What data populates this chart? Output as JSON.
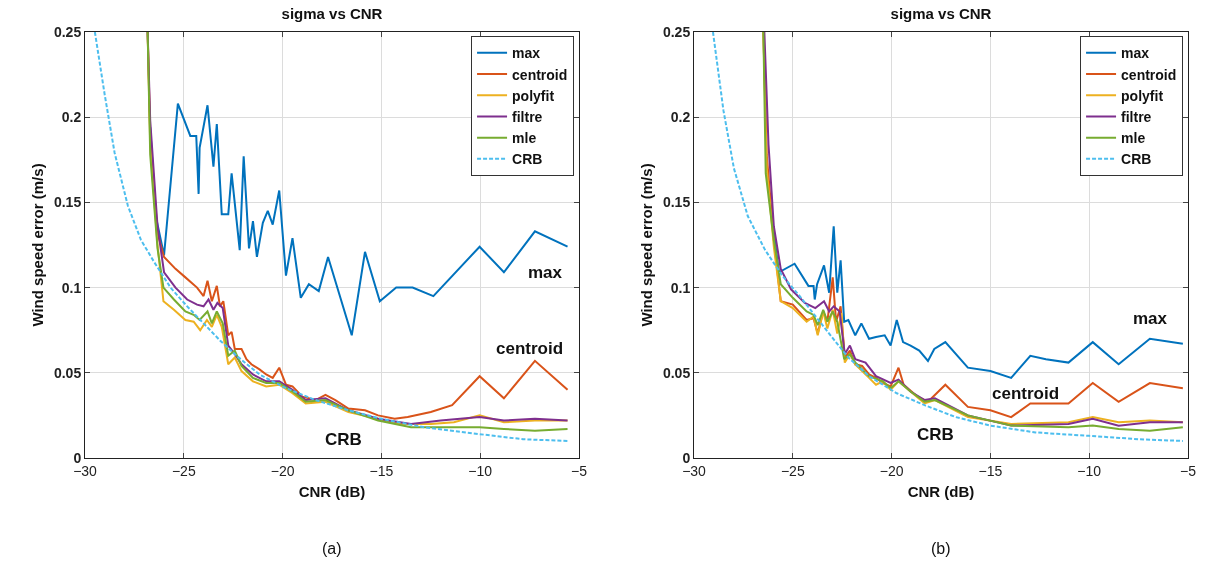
{
  "chart_data": [
    {
      "type": "line",
      "title": "sigma vs CNR",
      "xlabel": "CNR (dB)",
      "ylabel": "Wind speed error (m/s)",
      "xlim": [
        -30,
        -5
      ],
      "xticks": [
        -30,
        -25,
        -20,
        -15,
        -10,
        -5
      ],
      "ylim": [
        0,
        0.25
      ],
      "yticks": [
        0,
        0.05,
        0.1,
        0.15,
        0.2,
        0.25
      ],
      "grid": true,
      "legend": "top right",
      "annotations": [
        "max",
        "centroid",
        "CRB",
        "(a)"
      ],
      "series": [
        {
          "name": "max",
          "color": "#0072bd",
          "x": [
            -26.7,
            -26.42,
            -26.0,
            -25.3,
            -24.67,
            -24.37,
            -24.25,
            -24.2,
            -23.8,
            -23.5,
            -23.33,
            -23.08,
            -22.75,
            -22.58,
            -22.17,
            -21.97,
            -21.7,
            -21.5,
            -21.3,
            -21.0,
            -20.75,
            -20.5,
            -20.17,
            -19.83,
            -19.5,
            -19.08,
            -18.67,
            -18.17,
            -17.7,
            -16.5,
            -15.83,
            -15.08,
            -14.25,
            -13.42,
            -12.37,
            -10.03,
            -8.8,
            -7.23,
            -5.58
          ],
          "values": [
            0.194,
            0.142,
            0.119,
            0.208,
            0.189,
            0.189,
            0.155,
            0.182,
            0.207,
            0.171,
            0.196,
            0.143,
            0.143,
            0.167,
            0.122,
            0.177,
            0.123,
            0.139,
            0.118,
            0.138,
            0.145,
            0.137,
            0.157,
            0.107,
            0.129,
            0.094,
            0.102,
            0.098,
            0.118,
            0.072,
            0.121,
            0.092,
            0.1,
            0.1,
            0.095,
            0.124,
            0.109,
            0.133,
            0.124
          ]
        },
        {
          "name": "centroid",
          "color": "#d95319",
          "x": [
            -26.83,
            -26.7,
            -26.33,
            -26.0,
            -25.42,
            -24.92,
            -24.33,
            -24.0,
            -23.8,
            -23.58,
            -23.33,
            -23.17,
            -23.0,
            -22.75,
            -22.58,
            -22.42,
            -22.08,
            -21.83,
            -21.58,
            -21.17,
            -20.83,
            -20.5,
            -20.17,
            -19.83,
            -19.5,
            -19.0,
            -18.33,
            -17.83,
            -17.33,
            -16.67,
            -15.83,
            -15.17,
            -14.33,
            -13.67,
            -12.5,
            -11.42,
            -10.03,
            -8.8,
            -7.23,
            -5.58
          ],
          "values": [
            0.25,
            0.19,
            0.132,
            0.118,
            0.111,
            0.106,
            0.1,
            0.095,
            0.104,
            0.092,
            0.101,
            0.089,
            0.092,
            0.072,
            0.074,
            0.064,
            0.064,
            0.058,
            0.055,
            0.052,
            0.049,
            0.047,
            0.053,
            0.043,
            0.042,
            0.036,
            0.034,
            0.037,
            0.034,
            0.029,
            0.028,
            0.025,
            0.023,
            0.024,
            0.027,
            0.031,
            0.048,
            0.035,
            0.057,
            0.04
          ]
        },
        {
          "name": "polyfit",
          "color": "#edb120",
          "x": [
            -26.83,
            -26.7,
            -26.33,
            -26.03,
            -25.5,
            -24.92,
            -24.5,
            -24.17,
            -23.83,
            -23.58,
            -23.33,
            -23.08,
            -22.75,
            -22.42,
            -22.08,
            -21.5,
            -20.83,
            -20.17,
            -19.5,
            -18.83,
            -17.83,
            -16.67,
            -15.17,
            -14.0,
            -12.5,
            -11.33,
            -10.03,
            -8.8,
            -7.23,
            -5.58
          ],
          "values": [
            0.25,
            0.184,
            0.125,
            0.092,
            0.087,
            0.081,
            0.08,
            0.075,
            0.081,
            0.077,
            0.084,
            0.077,
            0.055,
            0.059,
            0.051,
            0.045,
            0.042,
            0.043,
            0.038,
            0.032,
            0.033,
            0.027,
            0.023,
            0.02,
            0.02,
            0.021,
            0.025,
            0.021,
            0.022,
            0.022
          ]
        },
        {
          "name": "filtre",
          "color": "#7e2f8e",
          "x": [
            -26.83,
            -26.7,
            -26.33,
            -26.0,
            -25.42,
            -24.83,
            -24.33,
            -24.0,
            -23.75,
            -23.5,
            -23.3,
            -23.03,
            -22.75,
            -22.42,
            -22.08,
            -21.5,
            -20.83,
            -20.17,
            -19.5,
            -18.83,
            -17.83,
            -16.67,
            -15.17,
            -13.5,
            -12.0,
            -10.03,
            -8.8,
            -7.23,
            -5.58
          ],
          "values": [
            0.25,
            0.198,
            0.136,
            0.109,
            0.1,
            0.093,
            0.09,
            0.089,
            0.093,
            0.087,
            0.091,
            0.088,
            0.066,
            0.061,
            0.055,
            0.049,
            0.045,
            0.045,
            0.04,
            0.034,
            0.035,
            0.028,
            0.023,
            0.02,
            0.022,
            0.024,
            0.022,
            0.023,
            0.022
          ]
        },
        {
          "name": "mle",
          "color": "#77ac30",
          "x": [
            -26.83,
            -26.7,
            -26.33,
            -26.03,
            -25.5,
            -24.92,
            -24.5,
            -24.2,
            -23.8,
            -23.58,
            -23.33,
            -23.03,
            -22.75,
            -22.42,
            -22.08,
            -21.5,
            -20.83,
            -20.17,
            -19.5,
            -18.83,
            -17.83,
            -16.67,
            -15.17,
            -13.5,
            -12.0,
            -10.03,
            -8.8,
            -7.23,
            -5.58
          ],
          "values": [
            0.25,
            0.178,
            0.123,
            0.1,
            0.093,
            0.086,
            0.084,
            0.081,
            0.086,
            0.079,
            0.086,
            0.079,
            0.06,
            0.063,
            0.054,
            0.047,
            0.044,
            0.044,
            0.039,
            0.033,
            0.034,
            0.028,
            0.022,
            0.018,
            0.018,
            0.018,
            0.017,
            0.016,
            0.017
          ]
        },
        {
          "name": "CRB",
          "color": "#4dbeee",
          "line_style": "dashed",
          "x": [
            -29.5,
            -29.0,
            -28.5,
            -27.83,
            -27.17,
            -26.5,
            -25.67,
            -24.83,
            -24.0,
            -23.17,
            -22.33,
            -21.17,
            -19.83,
            -18.33,
            -16.67,
            -15.0,
            -12.83,
            -10.03,
            -7.83,
            -5.58
          ],
          "values": [
            0.25,
            0.213,
            0.179,
            0.148,
            0.128,
            0.115,
            0.1,
            0.089,
            0.079,
            0.069,
            0.06,
            0.049,
            0.041,
            0.034,
            0.028,
            0.023,
            0.018,
            0.014,
            0.011,
            0.01
          ]
        }
      ]
    },
    {
      "type": "line",
      "title": "sigma vs CNR",
      "xlabel": "CNR (dB)",
      "ylabel": "Wind speed error (m/s)",
      "xlim": [
        -30,
        -5
      ],
      "xticks": [
        -30,
        -25,
        -20,
        -15,
        -10,
        -5
      ],
      "ylim": [
        0,
        0.25
      ],
      "yticks": [
        0,
        0.05,
        0.1,
        0.15,
        0.2,
        0.25
      ],
      "grid": true,
      "legend": "top right",
      "annotations": [
        "max",
        "centroid",
        "CRB",
        "(b)"
      ],
      "series": [
        {
          "name": "max",
          "color": "#0072bd",
          "x": [
            -25.96,
            -25.7,
            -24.91,
            -24.21,
            -23.95,
            -23.89,
            -23.77,
            -23.42,
            -23.16,
            -22.93,
            -22.75,
            -22.58,
            -22.4,
            -22.19,
            -21.84,
            -21.53,
            -21.14,
            -20.79,
            -20.35,
            -20.05,
            -19.74,
            -19.42,
            -19.04,
            -18.6,
            -18.16,
            -17.84,
            -17.28,
            -16.14,
            -15.0,
            -13.95,
            -12.98,
            -12.19,
            -11.05,
            -9.82,
            -8.51,
            -6.93,
            -5.26
          ],
          "values": [
            0.132,
            0.109,
            0.114,
            0.101,
            0.101,
            0.093,
            0.102,
            0.113,
            0.097,
            0.136,
            0.097,
            0.116,
            0.08,
            0.081,
            0.072,
            0.079,
            0.07,
            0.071,
            0.072,
            0.066,
            0.081,
            0.068,
            0.066,
            0.063,
            0.057,
            0.064,
            0.068,
            0.053,
            0.051,
            0.047,
            0.06,
            0.058,
            0.056,
            0.068,
            0.055,
            0.07,
            0.067
          ]
        },
        {
          "name": "centroid",
          "color": "#d95319",
          "x": [
            -26.49,
            -26.32,
            -25.96,
            -25.61,
            -25.0,
            -24.3,
            -23.95,
            -23.74,
            -23.46,
            -23.25,
            -22.98,
            -22.81,
            -22.58,
            -22.37,
            -22.11,
            -21.84,
            -21.49,
            -21.14,
            -20.79,
            -20.44,
            -20.05,
            -19.65,
            -19.39,
            -18.68,
            -18.16,
            -17.28,
            -16.14,
            -15.0,
            -13.95,
            -12.98,
            -11.05,
            -9.82,
            -8.51,
            -6.93,
            -5.26
          ],
          "values": [
            0.25,
            0.178,
            0.128,
            0.092,
            0.09,
            0.081,
            0.082,
            0.073,
            0.086,
            0.08,
            0.106,
            0.08,
            0.089,
            0.059,
            0.063,
            0.055,
            0.054,
            0.049,
            0.047,
            0.044,
            0.042,
            0.053,
            0.043,
            0.036,
            0.033,
            0.043,
            0.03,
            0.028,
            0.024,
            0.032,
            0.032,
            0.044,
            0.033,
            0.044,
            0.041
          ]
        },
        {
          "name": "polyfit",
          "color": "#edb120",
          "x": [
            -26.49,
            -26.32,
            -25.96,
            -25.61,
            -25.0,
            -24.3,
            -23.95,
            -23.74,
            -23.46,
            -23.25,
            -22.98,
            -22.75,
            -22.54,
            -22.37,
            -22.11,
            -21.84,
            -21.14,
            -20.79,
            -20.44,
            -20.05,
            -19.65,
            -19.04,
            -18.33,
            -17.81,
            -16.14,
            -13.95,
            -11.05,
            -9.82,
            -8.51,
            -6.93,
            -5.26
          ],
          "values": [
            0.25,
            0.17,
            0.124,
            0.092,
            0.088,
            0.08,
            0.083,
            0.072,
            0.086,
            0.076,
            0.087,
            0.073,
            0.085,
            0.056,
            0.061,
            0.055,
            0.047,
            0.043,
            0.045,
            0.04,
            0.045,
            0.039,
            0.032,
            0.034,
            0.024,
            0.02,
            0.021,
            0.024,
            0.021,
            0.022,
            0.021
          ]
        },
        {
          "name": "filtre",
          "color": "#7e2f8e",
          "x": [
            -26.44,
            -26.23,
            -25.96,
            -25.61,
            -25.09,
            -24.39,
            -23.86,
            -23.42,
            -23.16,
            -22.93,
            -22.63,
            -22.37,
            -22.11,
            -21.84,
            -21.32,
            -20.79,
            -20.05,
            -19.65,
            -19.04,
            -18.33,
            -17.81,
            -16.14,
            -13.95,
            -11.05,
            -9.82,
            -8.51,
            -6.93,
            -5.26
          ],
          "values": [
            0.25,
            0.184,
            0.136,
            0.111,
            0.099,
            0.091,
            0.088,
            0.092,
            0.086,
            0.089,
            0.086,
            0.061,
            0.066,
            0.058,
            0.056,
            0.048,
            0.044,
            0.046,
            0.039,
            0.034,
            0.035,
            0.025,
            0.019,
            0.02,
            0.023,
            0.019,
            0.021,
            0.021
          ]
        },
        {
          "name": "mle",
          "color": "#77ac30",
          "x": [
            -26.49,
            -26.37,
            -25.96,
            -25.61,
            -25.0,
            -24.3,
            -23.95,
            -23.74,
            -23.46,
            -23.25,
            -22.98,
            -22.75,
            -22.4,
            -22.11,
            -21.84,
            -21.14,
            -20.44,
            -20.05,
            -19.65,
            -19.04,
            -18.33,
            -17.81,
            -16.14,
            -13.95,
            -11.05,
            -9.82,
            -8.51,
            -6.93,
            -5.26
          ],
          "values": [
            0.25,
            0.167,
            0.128,
            0.102,
            0.094,
            0.086,
            0.084,
            0.078,
            0.087,
            0.08,
            0.086,
            0.08,
            0.058,
            0.061,
            0.056,
            0.048,
            0.045,
            0.041,
            0.045,
            0.039,
            0.033,
            0.034,
            0.025,
            0.019,
            0.018,
            0.019,
            0.017,
            0.016,
            0.018
          ]
        },
        {
          "name": "CRB",
          "color": "#4dbeee",
          "line_style": "dashed",
          "x": [
            -29.04,
            -28.51,
            -27.98,
            -27.28,
            -26.4,
            -25.53,
            -24.65,
            -23.77,
            -22.89,
            -22.19,
            -21.14,
            -19.74,
            -18.33,
            -16.75,
            -15.0,
            -12.72,
            -10.0,
            -7.46,
            -5.26
          ],
          "values": [
            0.25,
            0.204,
            0.17,
            0.142,
            0.122,
            0.107,
            0.095,
            0.082,
            0.069,
            0.059,
            0.048,
            0.038,
            0.031,
            0.024,
            0.019,
            0.015,
            0.013,
            0.011,
            0.01
          ]
        }
      ]
    }
  ]
}
